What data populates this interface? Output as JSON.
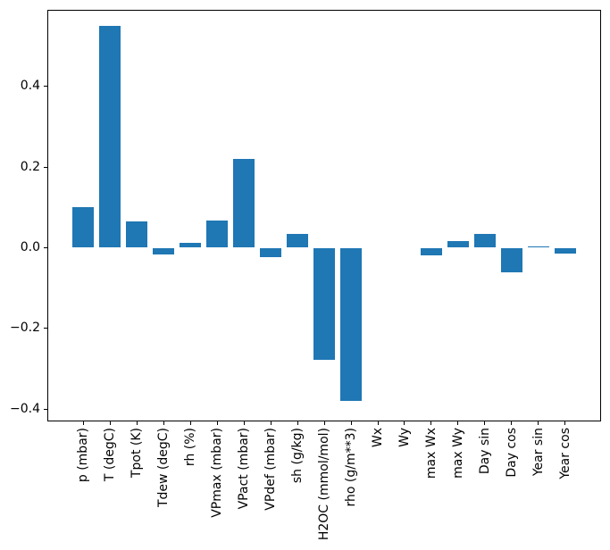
{
  "chart_data": {
    "type": "bar",
    "title": "",
    "xlabel": "",
    "ylabel": "",
    "categories": [
      "p (mbar)",
      "T (degC)",
      "Tpot (K)",
      "Tdew (degC)",
      "rh (%)",
      "VPmax (mbar)",
      "VPact (mbar)",
      "VPdef (mbar)",
      "sh (g/kg)",
      "H2OC (mmol/mol)",
      "rho (g/m**3)",
      "Wx",
      "Wy",
      "max Wx",
      "max Wy",
      "Day sin",
      "Day cos",
      "Year sin",
      "Year cos"
    ],
    "values": [
      0.1,
      0.55,
      0.065,
      -0.017,
      0.012,
      0.068,
      0.22,
      -0.024,
      0.034,
      -0.278,
      -0.38,
      0.0,
      0.0,
      -0.019,
      0.017,
      0.035,
      -0.061,
      0.004,
      -0.015
    ],
    "bar_color": "#1f77b4",
    "bar_width": 0.8,
    "xlim": [
      -1.34,
      19.34
    ],
    "ylim": [
      -0.43,
      0.589
    ],
    "yticks": [
      {
        "value": 0.4,
        "label": "0.4"
      },
      {
        "value": 0.2,
        "label": "0.2"
      },
      {
        "value": 0.0,
        "label": "0.0"
      },
      {
        "value": -0.2,
        "label": "−0.2"
      },
      {
        "value": -0.4,
        "label": "−0.4"
      }
    ],
    "grid": false,
    "legend": "none",
    "background_color": "#ffffff",
    "axis_color": "#000000"
  }
}
